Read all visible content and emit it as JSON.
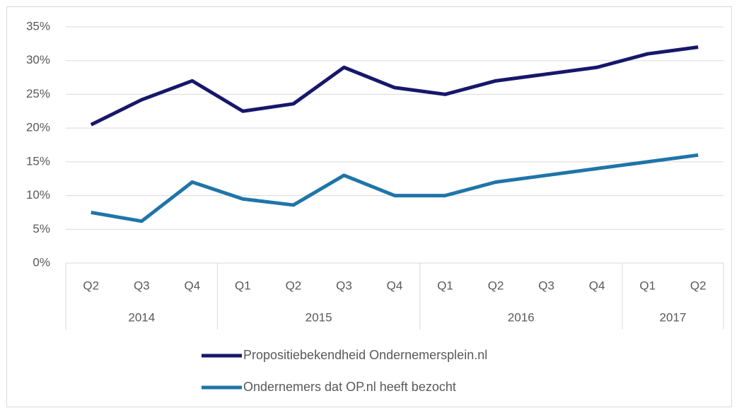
{
  "chart_data": {
    "type": "line",
    "category_groups": [
      {
        "name": "2014",
        "categories": [
          "Q2",
          "Q3",
          "Q4"
        ]
      },
      {
        "name": "2015",
        "categories": [
          "Q1",
          "Q2",
          "Q3",
          "Q4"
        ]
      },
      {
        "name": "2016",
        "categories": [
          "Q1",
          "Q2",
          "Q3",
          "Q4"
        ]
      },
      {
        "name": "2017",
        "categories": [
          "Q1",
          "Q2"
        ]
      }
    ],
    "series": [
      {
        "name": "Propositiebekendheid Ondernemersplein.nl",
        "color": "#17176b",
        "values": [
          20.5,
          24.2,
          27,
          22.5,
          23.6,
          29,
          26,
          25,
          27,
          28,
          29,
          31,
          32
        ]
      },
      {
        "name": "Ondernemers dat OP.nl heeft bezocht",
        "color": "#1f75a8",
        "values": [
          7.5,
          6.2,
          12,
          9.5,
          8.6,
          13,
          10,
          10,
          12,
          13,
          14,
          15,
          16
        ]
      }
    ],
    "ylim": [
      0,
      35
    ],
    "yticks": [
      {
        "value": 0,
        "label": "0%"
      },
      {
        "value": 5,
        "label": "5%"
      },
      {
        "value": 10,
        "label": "10%"
      },
      {
        "value": 15,
        "label": "15%"
      },
      {
        "value": 20,
        "label": "20%"
      },
      {
        "value": 25,
        "label": "25%"
      },
      {
        "value": 30,
        "label": "30%"
      },
      {
        "value": 35,
        "label": "35%"
      }
    ],
    "grid": true,
    "legend": "bottom"
  }
}
